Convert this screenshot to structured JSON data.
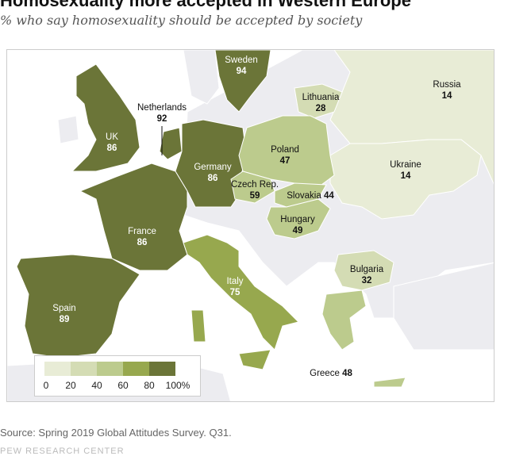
{
  "title": "Homosexuality more accepted in Western Europe",
  "subtitle": "% who say homosexuality should be accepted by society",
  "colors": {
    "c0_20": "#e8ecd6",
    "c20_40": "#d4dcb4",
    "c40_60": "#bccb8d",
    "c60_80": "#97a84e",
    "c80_100": "#6b7538",
    "other_land": "#ececf0"
  },
  "countries": [
    {
      "name": "Sweden",
      "value": "94"
    },
    {
      "name": "Lithuania",
      "value": "28"
    },
    {
      "name": "Russia",
      "value": "14"
    },
    {
      "name": "Netherlands",
      "value": "92"
    },
    {
      "name": "UK",
      "value": "86"
    },
    {
      "name": "Poland",
      "value": "47"
    },
    {
      "name": "Ukraine",
      "value": "14"
    },
    {
      "name": "Germany",
      "value": "86"
    },
    {
      "name": "Czech Rep.",
      "value": "59"
    },
    {
      "name": "Slovakia",
      "value": "44"
    },
    {
      "name": "Hungary",
      "value": "49"
    },
    {
      "name": "France",
      "value": "86"
    },
    {
      "name": "Bulgaria",
      "value": "32"
    },
    {
      "name": "Italy",
      "value": "75"
    },
    {
      "name": "Spain",
      "value": "89"
    },
    {
      "name": "Greece",
      "value": "48"
    }
  ],
  "legend": {
    "ticks": [
      "0",
      "20",
      "40",
      "60",
      "80",
      "100%"
    ]
  },
  "source": "Source: Spring 2019 Global Attitudes Survey. Q31.",
  "footer": "PEW RESEARCH CENTER"
}
